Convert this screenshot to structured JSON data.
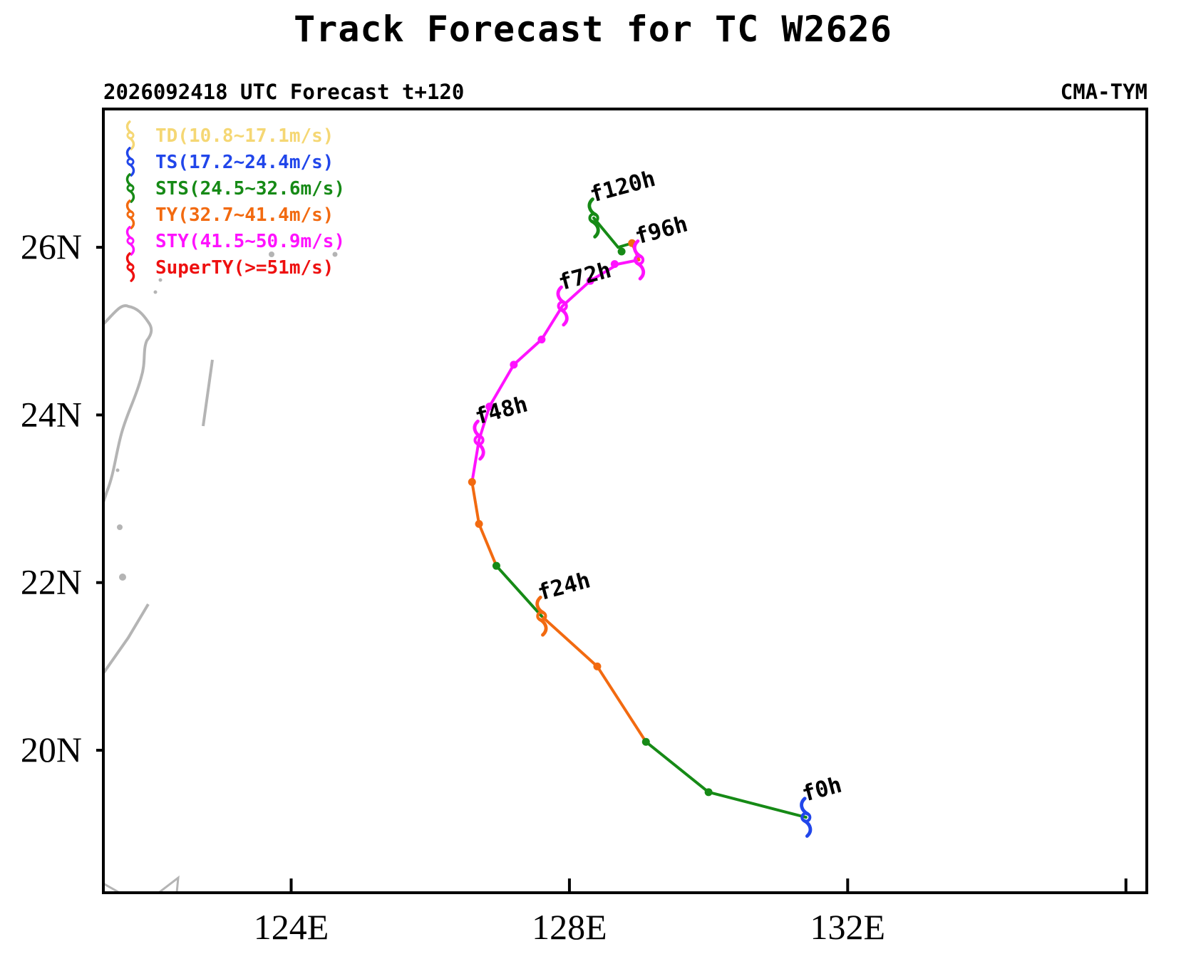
{
  "title": "Track Forecast for TC W2626",
  "subtitle_left": "2026092418 UTC Forecast t+120",
  "subtitle_right": "CMA-TYM",
  "colors": {
    "TD": "#f5d774",
    "TS": "#2146ea",
    "STS": "#168a16",
    "TY": "#f26a10",
    "STY": "#ff12ff",
    "SuperTY": "#ee1010",
    "land": "#b4b4b4"
  },
  "legend": [
    {
      "key": "TD",
      "label": "TD(10.8~17.1m/s)"
    },
    {
      "key": "TS",
      "label": "TS(17.2~24.4m/s)"
    },
    {
      "key": "STS",
      "label": "STS(24.5~32.6m/s)"
    },
    {
      "key": "TY",
      "label": "TY(32.7~41.4m/s)"
    },
    {
      "key": "STY",
      "label": "STY(41.5~50.9m/s)"
    },
    {
      "key": "SuperTY",
      "label": "SuperTY(>=51m/s)"
    }
  ],
  "axes": {
    "lon_range": [
      121.3,
      136.3
    ],
    "lat_range": [
      18.3,
      27.65
    ],
    "x_ticks": [
      {
        "value": 124,
        "label": "124E"
      },
      {
        "value": 128,
        "label": "128E"
      },
      {
        "value": 132,
        "label": "132E"
      },
      {
        "value": 136,
        "label": ""
      }
    ],
    "y_ticks": [
      {
        "value": 20,
        "label": "20N"
      },
      {
        "value": 22,
        "label": "22N"
      },
      {
        "value": 24,
        "label": "24N"
      },
      {
        "value": 26,
        "label": "26N"
      }
    ]
  },
  "track": [
    {
      "lon": 131.4,
      "lat": 19.2,
      "cat": "TS"
    },
    {
      "lon": 130.0,
      "lat": 19.5,
      "cat": "STS"
    },
    {
      "lon": 129.1,
      "lat": 20.1,
      "cat": "STS"
    },
    {
      "lon": 128.4,
      "lat": 21.0,
      "cat": "TY"
    },
    {
      "lon": 127.6,
      "lat": 21.6,
      "cat": "TY"
    },
    {
      "lon": 126.95,
      "lat": 22.2,
      "cat": "STS"
    },
    {
      "lon": 126.7,
      "lat": 22.7,
      "cat": "TY"
    },
    {
      "lon": 126.6,
      "lat": 23.2,
      "cat": "TY"
    },
    {
      "lon": 126.7,
      "lat": 23.7,
      "cat": "STY"
    },
    {
      "lon": 126.85,
      "lat": 24.1,
      "cat": "STY"
    },
    {
      "lon": 127.2,
      "lat": 24.6,
      "cat": "STY"
    },
    {
      "lon": 127.6,
      "lat": 24.9,
      "cat": "STY"
    },
    {
      "lon": 127.9,
      "lat": 25.3,
      "cat": "STY"
    },
    {
      "lon": 128.3,
      "lat": 25.6,
      "cat": "STY"
    },
    {
      "lon": 128.7,
      "lat": 25.8,
      "cat": "STY"
    },
    {
      "lon": 129.0,
      "lat": 25.85,
      "cat": "STY"
    },
    {
      "lon": 128.9,
      "lat": 26.05,
      "cat": "TY"
    },
    {
      "lon": 128.7,
      "lat": 26.0,
      "cat": "STS"
    },
    {
      "lon": 128.35,
      "lat": 26.35,
      "cat": "STS"
    }
  ],
  "track_points": [
    {
      "lon": 130.0,
      "lat": 19.5,
      "cat": "STS"
    },
    {
      "lon": 129.1,
      "lat": 20.1,
      "cat": "STS"
    },
    {
      "lon": 128.4,
      "lat": 21.0,
      "cat": "TY"
    },
    {
      "lon": 126.95,
      "lat": 22.2,
      "cat": "STS"
    },
    {
      "lon": 126.7,
      "lat": 22.7,
      "cat": "TY"
    },
    {
      "lon": 126.6,
      "lat": 23.2,
      "cat": "TY"
    },
    {
      "lon": 126.85,
      "lat": 24.1,
      "cat": "STY"
    },
    {
      "lon": 127.2,
      "lat": 24.6,
      "cat": "STY"
    },
    {
      "lon": 127.6,
      "lat": 24.9,
      "cat": "STY"
    },
    {
      "lon": 128.3,
      "lat": 25.6,
      "cat": "STY"
    },
    {
      "lon": 128.65,
      "lat": 25.8,
      "cat": "STY"
    },
    {
      "lon": 128.9,
      "lat": 26.05,
      "cat": "TY"
    },
    {
      "lon": 128.75,
      "lat": 25.95,
      "cat": "STS"
    }
  ],
  "markers": [
    {
      "label": "f0h",
      "lon": 131.4,
      "lat": 19.2,
      "cat": "TS"
    },
    {
      "label": "f24h",
      "lon": 127.6,
      "lat": 21.6,
      "cat": "TY"
    },
    {
      "label": "f48h",
      "lon": 126.7,
      "lat": 23.7,
      "cat": "STY"
    },
    {
      "label": "f72h",
      "lon": 127.9,
      "lat": 25.3,
      "cat": "STY"
    },
    {
      "label": "f96h",
      "lon": 129.0,
      "lat": 25.85,
      "cat": "STY"
    },
    {
      "label": "f120h",
      "lon": 128.35,
      "lat": 26.35,
      "cat": "STS"
    }
  ]
}
